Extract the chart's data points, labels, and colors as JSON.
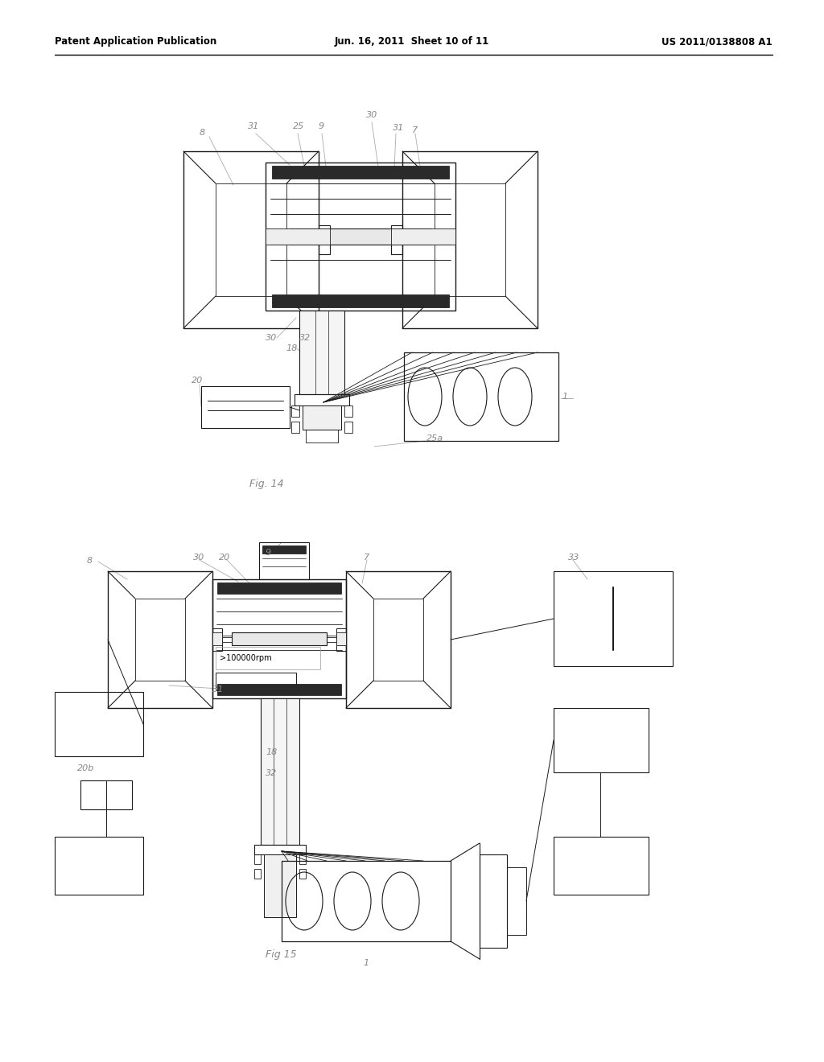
{
  "title_left": "Patent Application Publication",
  "title_center": "Jun. 16, 2011  Sheet 10 of 11",
  "title_right": "US 2011/0138808 A1",
  "fig14_label": "Fig. 14",
  "fig15_label": "Fig 15",
  "background_color": "#ffffff",
  "line_color": "#1a1a1a",
  "label_color": "#888888"
}
